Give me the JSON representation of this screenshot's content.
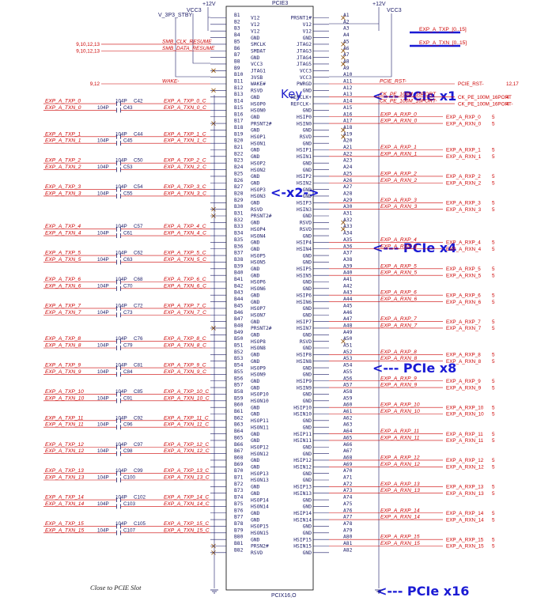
{
  "title": "PCIE3",
  "footer_name": "PCIX16,O",
  "key_label": "Key",
  "note": "Close to PCIE Slot",
  "bus_labels": [
    "EXP_A_TXP_[0..15]",
    "EXP_A_TXN_[0..15]"
  ],
  "power": {
    "v12_left": "+12V",
    "v12_right": "+12V",
    "vcc3_left": "VCC3",
    "vcc3_right": "VCC3",
    "v3p3": "V_3P3_STBY"
  },
  "annotations": {
    "x1": "<--- PCIe x1",
    "x2": "<-x2->",
    "x4": "<--- PCIe x4",
    "x8": "<--- PCIe x8",
    "x16": "<--- PCIe x16"
  },
  "b_pins": [
    [
      "B1",
      "V12"
    ],
    [
      "B2",
      "V12"
    ],
    [
      "B3",
      "V12"
    ],
    [
      "B4",
      "GND"
    ],
    [
      "B5",
      "SMCLK"
    ],
    [
      "B6",
      "SMDAT"
    ],
    [
      "B7",
      "GND"
    ],
    [
      "B8",
      "VCC3"
    ],
    [
      "B9",
      "JTAG1"
    ],
    [
      "B10",
      "3VSB"
    ],
    [
      "B11",
      "WAKE#"
    ],
    [
      "B12",
      "RSVD"
    ],
    [
      "B13",
      "GND"
    ],
    [
      "B14",
      "HSOP0"
    ],
    [
      "B15",
      "HSON0"
    ],
    [
      "B16",
      "GND"
    ],
    [
      "B17",
      "PRSNT2#"
    ],
    [
      "B18",
      "GND"
    ],
    [
      "B19",
      "HSOP1"
    ],
    [
      "B20",
      "HSON1"
    ],
    [
      "B21",
      "GND"
    ],
    [
      "B22",
      "GND"
    ],
    [
      "B23",
      "HSOP2"
    ],
    [
      "B24",
      "HSON2"
    ],
    [
      "B25",
      "GND"
    ],
    [
      "B26",
      "GND"
    ],
    [
      "B27",
      "HSOP3"
    ],
    [
      "B28",
      "HSON3"
    ],
    [
      "B29",
      "GND"
    ],
    [
      "B30",
      "RSVD"
    ],
    [
      "B31",
      "PRSNT2#"
    ],
    [
      "B32",
      "GND"
    ],
    [
      "B33",
      "HSOP4"
    ],
    [
      "B34",
      "HSON4"
    ],
    [
      "B35",
      "GND"
    ],
    [
      "B36",
      "GND"
    ],
    [
      "B37",
      "HSOP5"
    ],
    [
      "B38",
      "HSON5"
    ],
    [
      "B39",
      "GND"
    ],
    [
      "B40",
      "GND"
    ],
    [
      "B41",
      "HSOP6"
    ],
    [
      "B42",
      "HSON6"
    ],
    [
      "B43",
      "GND"
    ],
    [
      "B44",
      "GND"
    ],
    [
      "B45",
      "HSOP7"
    ],
    [
      "B46",
      "HSON7"
    ],
    [
      "B47",
      "GND"
    ],
    [
      "B48",
      "PRSNT2#"
    ],
    [
      "B49",
      "GND"
    ],
    [
      "B50",
      "HSOP8"
    ],
    [
      "B51",
      "HSON8"
    ],
    [
      "B52",
      "GND"
    ],
    [
      "B53",
      "GND"
    ],
    [
      "B54",
      "HSOP9"
    ],
    [
      "B55",
      "HSON9"
    ],
    [
      "B56",
      "GND"
    ],
    [
      "B57",
      "GND"
    ],
    [
      "B58",
      "HSOP10"
    ],
    [
      "B59",
      "HSON10"
    ],
    [
      "B60",
      "GND"
    ],
    [
      "B61",
      "GND"
    ],
    [
      "B62",
      "HSOP11"
    ],
    [
      "B63",
      "HSON11"
    ],
    [
      "B64",
      "GND"
    ],
    [
      "B65",
      "GND"
    ],
    [
      "B66",
      "HSOP12"
    ],
    [
      "B67",
      "HSON12"
    ],
    [
      "B68",
      "GND"
    ],
    [
      "B69",
      "GND"
    ],
    [
      "B70",
      "HSOP13"
    ],
    [
      "B71",
      "HSON13"
    ],
    [
      "B72",
      "GND"
    ],
    [
      "B73",
      "GND"
    ],
    [
      "B74",
      "HSOP14"
    ],
    [
      "B75",
      "HSON14"
    ],
    [
      "B76",
      "GND"
    ],
    [
      "B77",
      "GND"
    ],
    [
      "B78",
      "HSOP15"
    ],
    [
      "B79",
      "HSON15"
    ],
    [
      "B80",
      "GND"
    ],
    [
      "B81",
      "PRSN2#"
    ],
    [
      "B82",
      "RSVD"
    ]
  ],
  "a_pins": [
    [
      "A1",
      "PRSNT1#"
    ],
    [
      "A2",
      "V12"
    ],
    [
      "A3",
      "V12"
    ],
    [
      "A4",
      "GND"
    ],
    [
      "A5",
      "JTAG2"
    ],
    [
      "A6",
      "JTAG3"
    ],
    [
      "A7",
      "JTAG4"
    ],
    [
      "A8",
      "JTAG5"
    ],
    [
      "A9",
      "VCC3"
    ],
    [
      "A10",
      "VCC3"
    ],
    [
      "A11",
      "PWRGD"
    ],
    [
      "A12",
      "GND"
    ],
    [
      "A13",
      "REFCLK+"
    ],
    [
      "A14",
      "REFCLK-"
    ],
    [
      "A15",
      "GND"
    ],
    [
      "A16",
      "HSIP0"
    ],
    [
      "A17",
      "HSIN0"
    ],
    [
      "A18",
      "GND"
    ],
    [
      "A19",
      "RSVD"
    ],
    [
      "A20",
      "GND"
    ],
    [
      "A21",
      "HSIP1"
    ],
    [
      "A22",
      "HSIN1"
    ],
    [
      "A23",
      "GND"
    ],
    [
      "A24",
      "GND"
    ],
    [
      "A25",
      "HSIP2"
    ],
    [
      "A26",
      "HSIN2"
    ],
    [
      "A27",
      "GND"
    ],
    [
      "A28",
      "GND"
    ],
    [
      "A29",
      "HSIP3"
    ],
    [
      "A30",
      "HSIN3"
    ],
    [
      "A31",
      "GND"
    ],
    [
      "A32",
      "RSVD"
    ],
    [
      "A33",
      "RSVD"
    ],
    [
      "A34",
      "GND"
    ],
    [
      "A35",
      "HSIP4"
    ],
    [
      "A36",
      "HSIN4"
    ],
    [
      "A37",
      "GND"
    ],
    [
      "A38",
      "GND"
    ],
    [
      "A39",
      "HSIP5"
    ],
    [
      "A40",
      "HSIN5"
    ],
    [
      "A41",
      "GND"
    ],
    [
      "A42",
      "GND"
    ],
    [
      "A43",
      "HSIP6"
    ],
    [
      "A44",
      "HSIN6"
    ],
    [
      "A45",
      "GND"
    ],
    [
      "A46",
      "GND"
    ],
    [
      "A47",
      "HSIP7"
    ],
    [
      "A48",
      "HSIN7"
    ],
    [
      "A49",
      "GND"
    ],
    [
      "A50",
      "RSVD"
    ],
    [
      "A51",
      "GND"
    ],
    [
      "A52",
      "HSIP8"
    ],
    [
      "A53",
      "HSIN8"
    ],
    [
      "A54",
      "GND"
    ],
    [
      "A55",
      "GND"
    ],
    [
      "A56",
      "HSIP9"
    ],
    [
      "A57",
      "HSIN9"
    ],
    [
      "A58",
      "GND"
    ],
    [
      "A59",
      "GND"
    ],
    [
      "A60",
      "HSIP10"
    ],
    [
      "A61",
      "HSIN10"
    ],
    [
      "A62",
      "GND"
    ],
    [
      "A63",
      "GND"
    ],
    [
      "A64",
      "HSIP11"
    ],
    [
      "A65",
      "HSIN11"
    ],
    [
      "A66",
      "GND"
    ],
    [
      "A67",
      "GND"
    ],
    [
      "A68",
      "HSIP12"
    ],
    [
      "A69",
      "HSIN12"
    ],
    [
      "A70",
      "GND"
    ],
    [
      "A71",
      "GND"
    ],
    [
      "A72",
      "HSIP13"
    ],
    [
      "A73",
      "HSIN13"
    ],
    [
      "A74",
      "GND"
    ],
    [
      "A75",
      "GND"
    ],
    [
      "A76",
      "HSIP14"
    ],
    [
      "A77",
      "HSIN14"
    ],
    [
      "A78",
      "GND"
    ],
    [
      "A79",
      "GND"
    ],
    [
      "A80",
      "HSIP15"
    ],
    [
      "A81",
      "HSIN15"
    ],
    [
      "A82",
      "GND"
    ]
  ],
  "left_signals": [
    {
      "ref": "9,10,12,13",
      "net": "SMB_CLK_RESUME",
      "label": "SMB_CLK_RESUME",
      "pin": "B5"
    },
    {
      "ref": "9,10,12,13",
      "net": "SMB_DATA_RESUME",
      "label": "SMB_DATA_RESUME",
      "pin": "B6"
    },
    {
      "ref": "9,12",
      "net": "WAKE-",
      "label": "WAKE-",
      "pin": "B11"
    }
  ],
  "right_signals": [
    {
      "net": "PCIE_RST-",
      "label": "PCIE_RST-",
      "ref": "12,17",
      "pin": "A11"
    },
    {
      "net": "CK_PE_100M_16PORT",
      "label": "CK_PE_100M_16PORT",
      "ref": "4",
      "pin": "A13"
    },
    {
      "net": "CK_PE_100M_16PORT-",
      "label": "CK_PE_100M_16PORT-",
      "ref": "4",
      "pin": "A14"
    }
  ],
  "tx_lanes": [
    {
      "lane": 0,
      "p": "EXP_A_TXP_0",
      "n": "EXP_A_TXN_0",
      "pp": "EXP_A_TXP_0_C",
      "nn": "EXP_A_TXN_0_C",
      "cp": "C42",
      "cn": "C43",
      "val": "104P",
      "bp": "B14",
      "bn": "B15"
    },
    {
      "lane": 1,
      "p": "EXP_A_TXP_1",
      "n": "EXP_A_TXN_1",
      "pp": "EXP_A_TXP_1_C",
      "nn": "EXP_A_TXN_1_C",
      "cp": "C44",
      "cn": "C45",
      "val": "104P",
      "bp": "B19",
      "bn": "B20"
    },
    {
      "lane": 2,
      "p": "EXP_A_TXP_2",
      "n": "EXP_A_TXN_2",
      "pp": "EXP_A_TXP_2_C",
      "nn": "EXP_A_TXN_2_C",
      "cp": "C50",
      "cn": "C53",
      "val": "104P",
      "bp": "B23",
      "bn": "B24"
    },
    {
      "lane": 3,
      "p": "EXP_A_TXP_3",
      "n": "EXP_A_TXN_3",
      "pp": "EXP_A_TXP_3_C",
      "nn": "EXP_A_TXN_3_C",
      "cp": "C54",
      "cn": "C55",
      "val": "104P",
      "bp": "B27",
      "bn": "B28"
    },
    {
      "lane": 4,
      "p": "EXP_A_TXP_4",
      "n": "EXP_A_TXN_4",
      "pp": "EXP_A_TXP_4_C",
      "nn": "EXP_A_TXN_4_C",
      "cp": "C57",
      "cn": "C61",
      "val": "104P",
      "bp": "B33",
      "bn": "B34"
    },
    {
      "lane": 5,
      "p": "EXP_A_TXP_5",
      "n": "EXP_A_TXN_5",
      "pp": "EXP_A_TXP_5_C",
      "nn": "EXP_A_TXN_5_C",
      "cp": "C62",
      "cn": "C63",
      "val": "104P",
      "bp": "B37",
      "bn": "B38"
    },
    {
      "lane": 6,
      "p": "EXP_A_TXP_6",
      "n": "EXP_A_TXN_6",
      "pp": "EXP_A_TXP_6_C",
      "nn": "EXP_A_TXN_6_C",
      "cp": "C68",
      "cn": "C70",
      "val": "104P",
      "bp": "B41",
      "bn": "B42"
    },
    {
      "lane": 7,
      "p": "EXP_A_TXP_7",
      "n": "EXP_A_TXN_7",
      "pp": "EXP_A_TXP_7_C",
      "nn": "EXP_A_TXN_7_C",
      "cp": "C72",
      "cn": "C73",
      "val": "104P",
      "bp": "B45",
      "bn": "B46"
    },
    {
      "lane": 8,
      "p": "EXP_A_TXP_8",
      "n": "EXP_A_TXN_8",
      "pp": "EXP_A_TXP_8_C",
      "nn": "EXP_A_TXN_8_C",
      "cp": "C76",
      "cn": "C79",
      "val": "104P",
      "bp": "B50",
      "bn": "B51"
    },
    {
      "lane": 9,
      "p": "EXP_A_TXP_9",
      "n": "EXP_A_TXN_9",
      "pp": "EXP_A_TXP_9_C",
      "nn": "EXP_A_TXN_9_C",
      "cp": "C81",
      "cn": "C84",
      "val": "104P",
      "bp": "B54",
      "bn": "B55"
    },
    {
      "lane": 10,
      "p": "EXP_A_TXP_10",
      "n": "EXP_A_TXN_10",
      "pp": "EXP_A_TXP_10_C",
      "nn": "EXP_A_TXN_10_C",
      "cp": "C85",
      "cn": "C91",
      "val": "104P",
      "bp": "B58",
      "bn": "B59"
    },
    {
      "lane": 11,
      "p": "EXP_A_TXP_11",
      "n": "EXP_A_TXN_11",
      "pp": "EXP_A_TXP_11_C",
      "nn": "EXP_A_TXN_11_C",
      "cp": "C92",
      "cn": "C96",
      "val": "104P",
      "bp": "B62",
      "bn": "B63"
    },
    {
      "lane": 12,
      "p": "EXP_A_TXP_12",
      "n": "EXP_A_TXN_12",
      "pp": "EXP_A_TXP_12_C",
      "nn": "EXP_A_TXN_12_C",
      "cp": "C97",
      "cn": "C98",
      "val": "104P",
      "bp": "B66",
      "bn": "B67"
    },
    {
      "lane": 13,
      "p": "EXP_A_TXP_13",
      "n": "EXP_A_TXN_13",
      "pp": "EXP_A_TXP_13_C",
      "nn": "EXP_A_TXN_13_C",
      "cp": "C99",
      "cn": "C100",
      "val": "104P",
      "bp": "B70",
      "bn": "B71"
    },
    {
      "lane": 14,
      "p": "EXP_A_TXP_14",
      "n": "EXP_A_TXN_14",
      "pp": "EXP_A_TXP_14_C",
      "nn": "EXP_A_TXN_14_C",
      "cp": "C102",
      "cn": "C103",
      "val": "104P",
      "bp": "B74",
      "bn": "B75"
    },
    {
      "lane": 15,
      "p": "EXP_A_TXP_15",
      "n": "EXP_A_TXN_15",
      "pp": "EXP_A_TXP_15_C",
      "nn": "EXP_A_TXN_15_C",
      "cp": "C105",
      "cn": "C107",
      "val": "104P",
      "bp": "B78",
      "bn": "B79"
    }
  ],
  "rx_lanes": [
    {
      "lane": 0,
      "p": "EXP_A_RXP_0",
      "n": "EXP_A_RXN_0",
      "lp": "EXP_A_RXP_0",
      "ln": "EXP_A_RXN_0",
      "ref": "5",
      "ap": "A16",
      "an": "A17"
    },
    {
      "lane": 1,
      "p": "EXP_A_RXP_1",
      "n": "EXP_A_RXN_1",
      "lp": "EXP_A_RXP_1",
      "ln": "EXP_A_RXN_1",
      "ref": "5",
      "ap": "A21",
      "an": "A22"
    },
    {
      "lane": 2,
      "p": "EXP_A_RXP_2",
      "n": "EXP_A_RXN_2",
      "lp": "EXP_A_RXP_2",
      "ln": "EXP_A_RXN_2",
      "ref": "5",
      "ap": "A25",
      "an": "A26"
    },
    {
      "lane": 3,
      "p": "EXP_A_RXP_3",
      "n": "EXP_A_RXN_3",
      "lp": "EXP_A_RXP_3",
      "ln": "EXP_A_RXN_3",
      "ref": "5",
      "ap": "A29",
      "an": "A30"
    },
    {
      "lane": 4,
      "p": "EXP_A_RXP_4",
      "n": "EXP_A_RXN_4",
      "lp": "EXP_A_RXP_4",
      "ln": "EXP_A_RXN_4",
      "ref": "5",
      "ap": "A35",
      "an": "A36"
    },
    {
      "lane": 5,
      "p": "EXP_A_RXP_5",
      "n": "EXP_A_RXN_5",
      "lp": "EXP_A_RXP_5",
      "ln": "EXP_A_RXN_5",
      "ref": "5",
      "ap": "A39",
      "an": "A40"
    },
    {
      "lane": 6,
      "p": "EXP_A_RXP_6",
      "n": "EXP_A_RXN_6",
      "lp": "EXP_A_RXP_6",
      "ln": "EXP_A_RXN_6",
      "ref": "5",
      "ap": "A43",
      "an": "A44"
    },
    {
      "lane": 7,
      "p": "EXP_A_RXP_7",
      "n": "EXP_A_RXN_7",
      "lp": "EXP_A_RXP_7",
      "ln": "EXP_A_RXN_7",
      "ref": "5",
      "ap": "A47",
      "an": "A48"
    },
    {
      "lane": 8,
      "p": "EXP_A_RXP_8",
      "n": "EXP_A_RXN_8",
      "lp": "EXP_A_RXP_8",
      "ln": "EXP_A_RXN_8",
      "ref": "5",
      "ap": "A52",
      "an": "A53"
    },
    {
      "lane": 9,
      "p": "EXP_A_RXP_9",
      "n": "EXP_A_RXN_9",
      "lp": "EXP_A_RXP_9",
      "ln": "EXP_A_RXN_9",
      "ref": "5",
      "ap": "A56",
      "an": "A57"
    },
    {
      "lane": 10,
      "p": "EXP_A_RXP_10",
      "n": "EXP_A_RXN_10",
      "lp": "EXP_A_RXP_10",
      "ln": "EXP_A_RXN_10",
      "ref": "5",
      "ap": "A60",
      "an": "A61"
    },
    {
      "lane": 11,
      "p": "EXP_A_RXP_11",
      "n": "EXP_A_RXN_11",
      "lp": "EXP_A_RXP_11",
      "ln": "EXP_A_RXN_11",
      "ref": "5",
      "ap": "A64",
      "an": "A65"
    },
    {
      "lane": 12,
      "p": "EXP_A_RXP_12",
      "n": "EXP_A_RXN_12",
      "lp": "EXP_A_RXP_12",
      "ln": "EXP_A_RXN_12",
      "ref": "5",
      "ap": "A68",
      "an": "A69"
    },
    {
      "lane": 13,
      "p": "EXP_A_RXP_13",
      "n": "EXP_A_RXN_13",
      "lp": "EXP_A_RXP_13",
      "ln": "EXP_A_RXN_13",
      "ref": "5",
      "ap": "A72",
      "an": "A73"
    },
    {
      "lane": 14,
      "p": "EXP_A_RXP_14",
      "n": "EXP_A_RXN_14",
      "lp": "EXP_A_RXP_14",
      "ln": "EXP_A_RXN_14",
      "ref": "5",
      "ap": "A76",
      "an": "A77"
    },
    {
      "lane": 15,
      "p": "EXP_A_RXP_15",
      "n": "EXP_A_RXN_15",
      "lp": "EXP_A_RXP_15",
      "ln": "EXP_A_RXN_15",
      "ref": "5",
      "ap": "A80",
      "an": "A81"
    }
  ],
  "no_connect": [
    "B9",
    "B12",
    "B17",
    "B30",
    "B31",
    "B48",
    "B81",
    "B82",
    "A1",
    "A5",
    "A6",
    "A7",
    "A8",
    "A18",
    "A19",
    "A32",
    "A33",
    "A50"
  ],
  "colors": {
    "wire": "#cc0000",
    "pin": "#1a1a66",
    "box": "#000000",
    "annotation": "#1a1ad4"
  }
}
